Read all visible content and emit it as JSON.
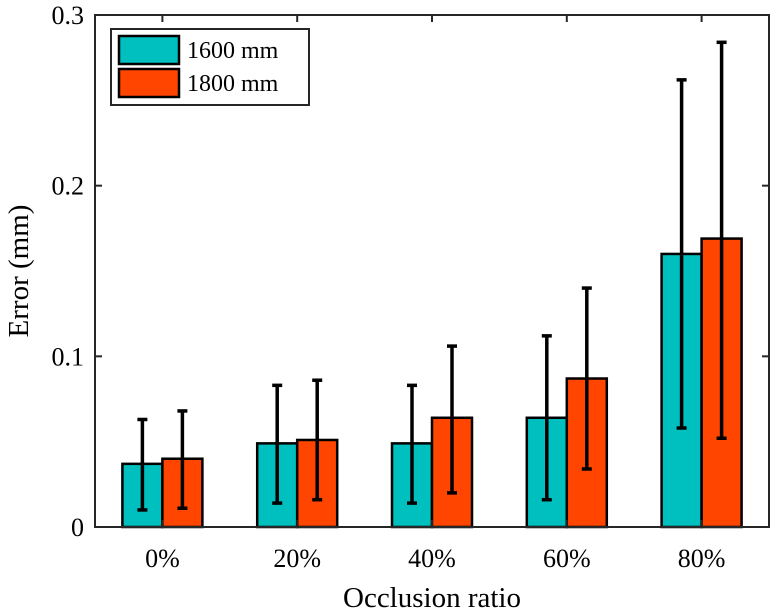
{
  "chart_data": {
    "type": "bar",
    "categories": [
      "0%",
      "20%",
      "40%",
      "60%",
      "80%"
    ],
    "series": [
      {
        "name": "1600 mm",
        "color": "#00BFBF",
        "values": [
          0.037,
          0.049,
          0.049,
          0.064,
          0.16
        ],
        "error_low": [
          0.01,
          0.014,
          0.014,
          0.016,
          0.058
        ],
        "error_high": [
          0.063,
          0.083,
          0.083,
          0.112,
          0.262
        ]
      },
      {
        "name": "1800 mm",
        "color": "#FF4500",
        "values": [
          0.04,
          0.051,
          0.064,
          0.087,
          0.169
        ],
        "error_low": [
          0.011,
          0.016,
          0.02,
          0.034,
          0.052
        ],
        "error_high": [
          0.068,
          0.086,
          0.106,
          0.14,
          0.284
        ]
      }
    ],
    "title": "",
    "xlabel": "Occlusion ratio",
    "ylabel": "Error (mm)",
    "ylim": [
      0,
      0.3
    ],
    "yticks": [
      0,
      0.1,
      0.2,
      0.3
    ],
    "ytick_labels": [
      "0",
      "0.1",
      "0.2",
      "0.3"
    ],
    "grid": false,
    "legend_position": "top-left"
  }
}
